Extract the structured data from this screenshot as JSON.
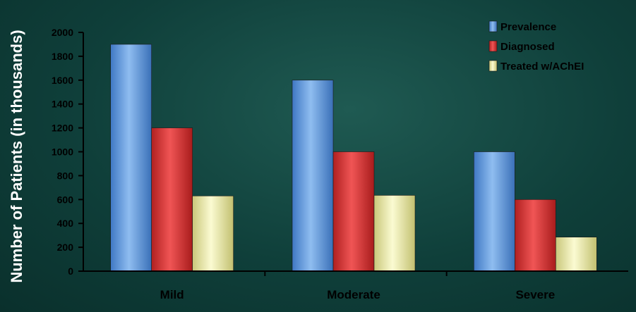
{
  "chart_data": {
    "type": "bar",
    "title": "",
    "xlabel": "",
    "ylabel": "Number of Patients (in thousands)",
    "categories": [
      "Mild",
      "Moderate",
      "Severe"
    ],
    "series": [
      {
        "name": "Prevalence",
        "values": [
          1900,
          1600,
          1000
        ],
        "color": "#6fa3e0"
      },
      {
        "name": "Diagnosed",
        "values": [
          1200,
          1000,
          600
        ],
        "color": "#d93a3a"
      },
      {
        "name": "Treated w/AChEI",
        "values": [
          630,
          635,
          285
        ],
        "color": "#ecebb0"
      }
    ],
    "ylim": [
      0,
      2000
    ],
    "yticks": [
      "0",
      "200",
      "400",
      "600",
      "800",
      "1000",
      "1200",
      "1400",
      "1600",
      "1800",
      "2000"
    ],
    "grid": false,
    "legend_position": "top-right"
  }
}
